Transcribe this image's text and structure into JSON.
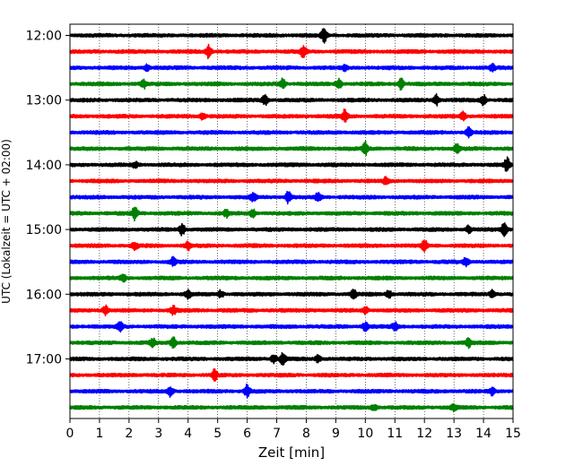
{
  "chart_data": {
    "type": "line",
    "title": "",
    "xlabel": "Zeit  [min]",
    "ylabel": "UTC (Lokalzeit = UTC + 02:00)",
    "xlim": [
      0,
      15
    ],
    "x_ticks": [
      "0",
      "1",
      "2",
      "3",
      "4",
      "5",
      "6",
      "7",
      "8",
      "9",
      "10",
      "11",
      "12",
      "13",
      "14",
      "15"
    ],
    "y_tick_labels": [
      "12:00",
      "13:00",
      "14:00",
      "15:00",
      "16:00",
      "17:00"
    ],
    "grid": "vertical dotted at each minute",
    "trace_interval_min": 15,
    "trace_colors": [
      "#000000",
      "#ff0000",
      "#0000ff",
      "#008000"
    ],
    "series": [
      {
        "start": "12:00",
        "color": "#000000",
        "events": [
          [
            8.6,
            1.0
          ]
        ]
      },
      {
        "start": "12:15",
        "color": "#ff0000",
        "events": [
          [
            4.7,
            1.0
          ],
          [
            7.9,
            0.9
          ]
        ]
      },
      {
        "start": "12:30",
        "color": "#0000ff",
        "events": [
          [
            2.6,
            0.4
          ],
          [
            9.3,
            0.4
          ],
          [
            14.3,
            0.5
          ]
        ]
      },
      {
        "start": "12:45",
        "color": "#008000",
        "events": [
          [
            2.5,
            0.6
          ],
          [
            7.2,
            0.7
          ],
          [
            9.1,
            0.8
          ],
          [
            11.2,
            0.9
          ]
        ]
      },
      {
        "start": "13:00",
        "color": "#000000",
        "events": [
          [
            6.6,
            0.8
          ],
          [
            12.4,
            0.8
          ],
          [
            14.0,
            0.7
          ]
        ]
      },
      {
        "start": "13:15",
        "color": "#ff0000",
        "events": [
          [
            4.5,
            0.5
          ],
          [
            9.3,
            0.9
          ],
          [
            13.3,
            0.6
          ]
        ]
      },
      {
        "start": "13:30",
        "color": "#0000ff",
        "events": [
          [
            13.5,
            0.7
          ]
        ]
      },
      {
        "start": "13:45",
        "color": "#008000",
        "events": [
          [
            10.0,
            0.9
          ],
          [
            13.1,
            0.6
          ]
        ]
      },
      {
        "start": "14:00",
        "color": "#000000",
        "events": [
          [
            2.2,
            0.4
          ],
          [
            14.8,
            1.0
          ]
        ]
      },
      {
        "start": "14:15",
        "color": "#ff0000",
        "events": [
          [
            10.7,
            0.5
          ]
        ]
      },
      {
        "start": "14:30",
        "color": "#0000ff",
        "events": [
          [
            6.2,
            0.6
          ],
          [
            7.4,
            0.9
          ],
          [
            8.4,
            0.8
          ]
        ]
      },
      {
        "start": "14:45",
        "color": "#008000",
        "events": [
          [
            2.2,
            1.0
          ],
          [
            5.3,
            0.5
          ],
          [
            6.2,
            0.6
          ]
        ]
      },
      {
        "start": "15:00",
        "color": "#000000",
        "events": [
          [
            3.8,
            0.8
          ],
          [
            13.5,
            0.6
          ],
          [
            14.7,
            0.9
          ]
        ]
      },
      {
        "start": "15:15",
        "color": "#ff0000",
        "events": [
          [
            2.2,
            0.5
          ],
          [
            4.0,
            0.6
          ],
          [
            12.0,
            0.8
          ]
        ]
      },
      {
        "start": "15:30",
        "color": "#0000ff",
        "events": [
          [
            3.5,
            0.6
          ],
          [
            13.4,
            0.6
          ]
        ]
      },
      {
        "start": "15:45",
        "color": "#008000",
        "events": [
          [
            1.8,
            0.5
          ]
        ]
      },
      {
        "start": "16:00",
        "color": "#000000",
        "events": [
          [
            4.0,
            0.6
          ],
          [
            5.1,
            0.5
          ],
          [
            9.6,
            0.8
          ],
          [
            10.8,
            0.6
          ],
          [
            14.3,
            0.5
          ]
        ]
      },
      {
        "start": "16:15",
        "color": "#ff0000",
        "events": [
          [
            1.2,
            0.7
          ],
          [
            3.5,
            0.6
          ],
          [
            10.0,
            0.5
          ]
        ]
      },
      {
        "start": "16:30",
        "color": "#0000ff",
        "events": [
          [
            1.7,
            0.7
          ],
          [
            10.0,
            0.6
          ],
          [
            11.0,
            0.6
          ]
        ]
      },
      {
        "start": "16:45",
        "color": "#008000",
        "events": [
          [
            2.8,
            0.6
          ],
          [
            3.5,
            0.8
          ],
          [
            13.5,
            0.6
          ]
        ]
      },
      {
        "start": "17:00",
        "color": "#000000",
        "events": [
          [
            6.9,
            0.6
          ],
          [
            7.2,
            0.9
          ],
          [
            8.4,
            0.5
          ]
        ]
      },
      {
        "start": "17:15",
        "color": "#ff0000",
        "events": [
          [
            4.9,
            0.8
          ]
        ]
      },
      {
        "start": "17:30",
        "color": "#0000ff",
        "events": [
          [
            3.4,
            0.7
          ],
          [
            6.0,
            0.9
          ],
          [
            14.3,
            0.5
          ]
        ]
      },
      {
        "start": "17:45",
        "color": "#008000",
        "events": [
          [
            10.3,
            0.4
          ],
          [
            13.0,
            0.5
          ]
        ]
      }
    ]
  }
}
